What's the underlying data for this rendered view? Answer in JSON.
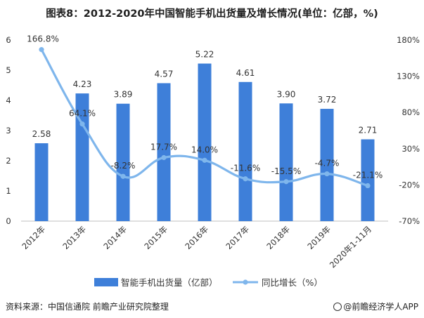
{
  "title": "图表8：2012-2020年中国智能手机出货量及增长情况(单位：亿部，%)",
  "source_left": "资料来源：中国信通院 前瞻产业研究院整理",
  "source_right": "@前瞻经济学人APP",
  "colors": {
    "bar": "#3E7FD9",
    "line": "#7FB6EC",
    "axis_text": "#333333",
    "baseline": "#bfbfbf"
  },
  "chart_data": {
    "type": "bar",
    "categories": [
      "2012年",
      "2013年",
      "2014年",
      "2015年",
      "2016年",
      "2017年",
      "2018年",
      "2019年",
      "2020年1-11月"
    ],
    "series": [
      {
        "name": "智能手机出货量（亿部）",
        "type": "bar",
        "axis": "left",
        "values": [
          2.58,
          4.23,
          3.89,
          4.57,
          5.22,
          4.61,
          3.9,
          3.72,
          2.71
        ],
        "labels": [
          "2.58",
          "4.23",
          "3.89",
          "4.57",
          "5.22",
          "4.61",
          "3.90",
          "3.72",
          "2.71"
        ]
      },
      {
        "name": "同比增长（%）",
        "type": "line",
        "axis": "right",
        "smooth": true,
        "values": [
          166.8,
          64.1,
          -8.2,
          17.7,
          14.0,
          -11.6,
          -15.5,
          -4.7,
          -21.1
        ],
        "labels": [
          "166.8%",
          "64.1%",
          "-8.2%",
          "17.7%",
          "14.0%",
          "-11.6%",
          "-15.5%",
          "-4.7%",
          "-21.1%"
        ]
      }
    ],
    "y_left": {
      "min": 0,
      "max": 6,
      "ticks": [
        "0",
        "1",
        "2",
        "3",
        "4",
        "5",
        "6"
      ]
    },
    "y_right": {
      "min": -70,
      "max": 180,
      "ticks": [
        "-70%",
        "-20%",
        "30%",
        "80%",
        "130%",
        "180%"
      ]
    },
    "grid": false,
    "legend_position": "bottom"
  }
}
